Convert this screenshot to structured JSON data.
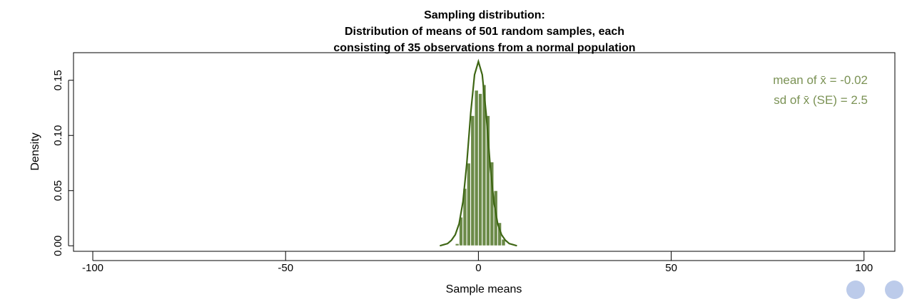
{
  "chart_data": {
    "type": "bar",
    "title_lines": [
      "Sampling distribution:",
      "Distribution of means of 501 random samples, each",
      "consisting of 35 observations from a normal population"
    ],
    "xlabel": "Sample means",
    "ylabel": "Density",
    "xlim": [
      -105,
      108
    ],
    "ylim": [
      -0.005,
      0.175
    ],
    "x_ticks": [
      -100,
      -50,
      0,
      50,
      100
    ],
    "x_tick_labels": [
      "-100",
      "-50",
      "0",
      "50",
      "100"
    ],
    "y_ticks": [
      0.0,
      0.05,
      0.1,
      0.15
    ],
    "y_tick_labels": [
      "0.00",
      "0.05",
      "0.10",
      "0.15"
    ],
    "grid": false,
    "histogram": {
      "bin_edges": [
        -6,
        -5,
        -4,
        -3,
        -2,
        -1,
        0,
        1,
        2,
        3,
        4,
        5,
        6,
        7
      ],
      "densities": [
        0.002,
        0.026,
        0.052,
        0.075,
        0.118,
        0.141,
        0.138,
        0.146,
        0.118,
        0.076,
        0.05,
        0.021,
        0.006
      ],
      "color": "#6b8a48"
    },
    "density_curve": {
      "x": [
        -10,
        -9,
        -8,
        -7,
        -6,
        -5,
        -4,
        -3,
        -2,
        -1,
        0,
        1,
        2,
        3,
        4,
        5,
        6,
        7,
        8,
        9,
        10
      ],
      "y": [
        0.0,
        0.001,
        0.002,
        0.005,
        0.01,
        0.02,
        0.04,
        0.075,
        0.12,
        0.155,
        0.167,
        0.155,
        0.12,
        0.075,
        0.04,
        0.02,
        0.01,
        0.005,
        0.002,
        0.001,
        0.0
      ],
      "color": "#3e6614"
    },
    "annotations": [
      "mean of  x̄ = -0.02",
      "sd of  x̄ (SE) = 2.5"
    ],
    "annotation_color": "#7b9255",
    "legend_placement": "top-right"
  }
}
